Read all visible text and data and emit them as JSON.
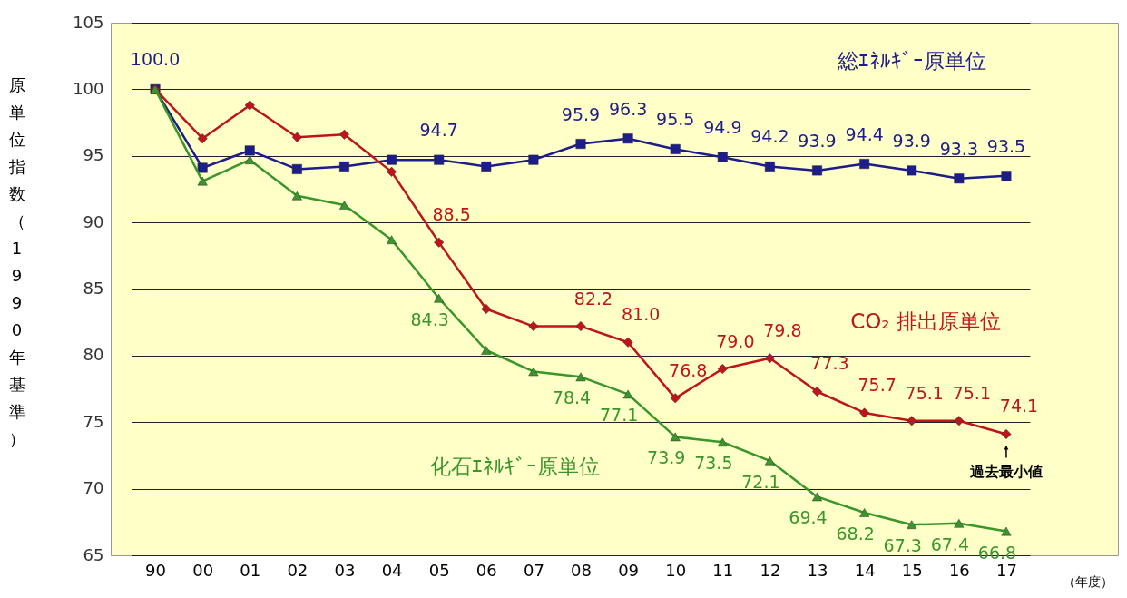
{
  "chart_data": {
    "type": "line",
    "ylabel": "原単位指数（1990年基準）",
    "xlabel": "（年度）",
    "categories": [
      "90",
      "00",
      "01",
      "02",
      "03",
      "04",
      "05",
      "06",
      "07",
      "08",
      "09",
      "10",
      "11",
      "12",
      "13",
      "14",
      "15",
      "16",
      "17"
    ],
    "ylim": [
      65,
      105
    ],
    "yticks": [
      65,
      70,
      75,
      80,
      85,
      90,
      95,
      100,
      105
    ],
    "grid": "y",
    "series": [
      {
        "name": "総ｴﾈﾙｷﾞｰ原単位",
        "color": "#1c1c8a",
        "marker": "square",
        "values": [
          100,
          94.1,
          95.4,
          94.0,
          94.2,
          94.7,
          94.7,
          94.2,
          94.7,
          95.9,
          96.3,
          95.5,
          94.9,
          94.2,
          93.9,
          94.4,
          93.9,
          93.3,
          93.5
        ],
        "value_labels": [
          "100.0",
          null,
          null,
          null,
          null,
          null,
          "94.7",
          null,
          null,
          "95.9",
          "96.3",
          "95.5",
          "94.9",
          "94.2",
          "93.9",
          "94.4",
          "93.9",
          "93.3",
          "93.5"
        ]
      },
      {
        "name": "CO₂ 排出原単位",
        "color": "#c0141c",
        "marker": "diamond",
        "values": [
          100,
          96.3,
          98.8,
          96.4,
          96.6,
          93.8,
          88.5,
          83.5,
          82.2,
          82.2,
          81.0,
          76.8,
          79.0,
          79.8,
          77.3,
          75.7,
          75.1,
          75.1,
          74.1
        ],
        "value_labels": [
          null,
          null,
          null,
          null,
          null,
          null,
          "88.5",
          null,
          null,
          "82.2",
          "81.0",
          "76.8",
          "79.0",
          "79.8",
          "77.3",
          "75.7",
          "75.1",
          "75.1",
          "74.1"
        ]
      },
      {
        "name": "化石ｴﾈﾙｷﾞｰ原単位",
        "color": "#3a962a",
        "marker": "triangle",
        "values": [
          100,
          93.1,
          94.7,
          92.0,
          91.3,
          88.7,
          84.3,
          80.4,
          78.8,
          78.4,
          77.1,
          73.9,
          73.5,
          72.1,
          69.4,
          68.2,
          67.3,
          67.4,
          66.8
        ],
        "value_labels": [
          null,
          null,
          null,
          null,
          null,
          null,
          "84.3",
          null,
          null,
          "78.4",
          "77.1",
          "73.9",
          "73.5",
          "72.1",
          "69.4",
          "68.2",
          "67.3",
          "67.4",
          "66.8"
        ]
      }
    ],
    "annotations": [
      {
        "text": "過去最小値",
        "x": "17",
        "y": 74.1
      }
    ]
  }
}
